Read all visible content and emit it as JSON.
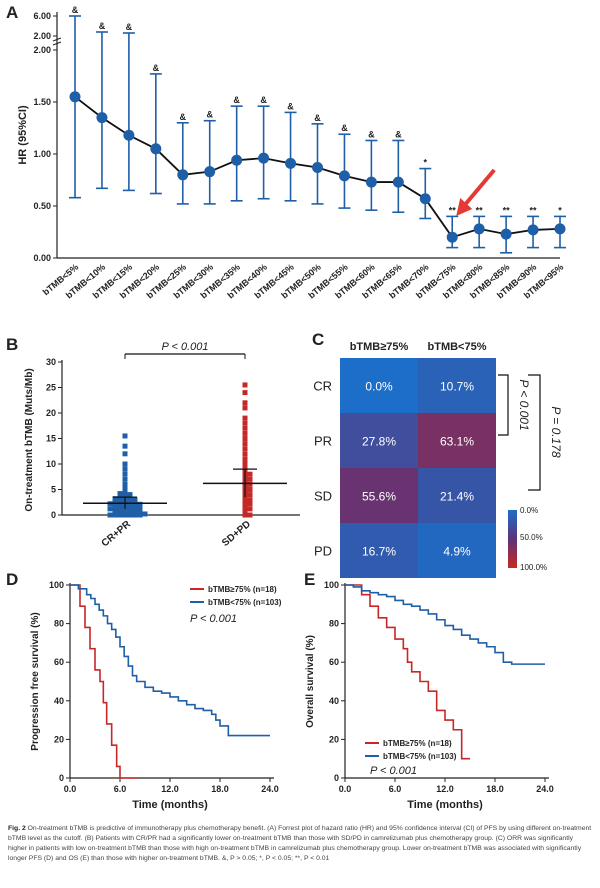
{
  "chart_data": [
    {
      "panel": "A",
      "type": "forest",
      "ylabel": "HR (95%CI)",
      "ylim": [
        0,
        6.0
      ],
      "yticks": [
        "0.00",
        "0.50",
        "1.00",
        "1.50",
        "2.00",
        "2.00",
        "6.00"
      ],
      "categories": [
        "bTMB<5%",
        "bTMB<10%",
        "bTMB<15%",
        "bTMB<20%",
        "bTMB<25%",
        "bTMB<30%",
        "bTMB<35%",
        "bTMB<40%",
        "bTMB<45%",
        "bTMB<50%",
        "bTMB<55%",
        "bTMB<60%",
        "bTMB<65%",
        "bTMB<70%",
        "bTMB<75%",
        "bTMB<80%",
        "bTMB<85%",
        "bTMB<90%",
        "bTMB<95%"
      ],
      "hr": [
        1.55,
        1.35,
        1.18,
        1.05,
        0.8,
        0.83,
        0.94,
        0.96,
        0.91,
        0.87,
        0.79,
        0.73,
        0.73,
        0.57,
        0.2,
        0.28,
        0.23,
        0.27,
        0.28
      ],
      "lower": [
        0.58,
        0.67,
        0.65,
        0.62,
        0.52,
        0.52,
        0.55,
        0.57,
        0.55,
        0.52,
        0.48,
        0.46,
        0.44,
        0.38,
        0.1,
        0.1,
        0.05,
        0.1,
        0.1
      ],
      "upper": [
        6.0,
        2.8,
        2.6,
        1.77,
        1.3,
        1.32,
        1.46,
        1.46,
        1.4,
        1.29,
        1.19,
        1.13,
        1.13,
        0.86,
        0.4,
        0.4,
        0.4,
        0.4,
        0.4
      ],
      "annotations": [
        "&",
        "&",
        "&",
        "&",
        "&",
        "&",
        "&",
        "&",
        "&",
        "&",
        "&",
        "&",
        "&",
        "*",
        "**",
        "**",
        "**",
        "**",
        "*"
      ]
    },
    {
      "panel": "B",
      "type": "scatter",
      "ylabel": "On-treatment bTMB (Muts/Mb)",
      "ylim": [
        0,
        30
      ],
      "yticks": [
        "0",
        "5",
        "10",
        "15",
        "20",
        "25",
        "30"
      ],
      "categories": [
        "CR+PR",
        "SD+PD"
      ],
      "means": [
        2.3,
        6.2
      ],
      "sd": [
        [
          1.2,
          3.5
        ],
        [
          3.5,
          9.0
        ]
      ],
      "points": [
        [
          0,
          0,
          0,
          0,
          0,
          0,
          0,
          0.2,
          0.3,
          0.4,
          0.5,
          0.5,
          0.6,
          0.7,
          0.8,
          0.9,
          1,
          1,
          1,
          1.1,
          1.2,
          1.3,
          1.4,
          1.5,
          1.5,
          1.6,
          1.7,
          1.8,
          1.9,
          2,
          2,
          2,
          2.1,
          2.2,
          2.3,
          2.4,
          2.5,
          2.5,
          2.6,
          2.8,
          3,
          3,
          3,
          3.2,
          3.4,
          3.5,
          3.6,
          3.8,
          4,
          4.2,
          4.5,
          5,
          5.5,
          6,
          7,
          8,
          9,
          10,
          12,
          13.5,
          15.5
        ],
        [
          0,
          0,
          0.5,
          1,
          1.2,
          1.5,
          2,
          2.2,
          2.5,
          3,
          3,
          3.5,
          4,
          4,
          4.5,
          5,
          5,
          5.5,
          6,
          6,
          6.5,
          7,
          7,
          7.5,
          8,
          8,
          8.5,
          9,
          9.5,
          10,
          10.5,
          11,
          12,
          13,
          14,
          15,
          16,
          17,
          18,
          19,
          21,
          22,
          24,
          25.5
        ]
      ],
      "annotation": "P < 0.001"
    },
    {
      "panel": "C",
      "type": "heatmap",
      "columns": [
        "bTMB≥75%",
        "bTMB<75%"
      ],
      "rows": [
        "CR",
        "PR",
        "SD",
        "PD"
      ],
      "values": [
        [
          0.0,
          10.7
        ],
        [
          27.8,
          63.1
        ],
        [
          55.6,
          21.4
        ],
        [
          16.7,
          4.9
        ]
      ],
      "cells": [
        [
          "0.0%",
          "10.7%"
        ],
        [
          "27.8%",
          "63.1%"
        ],
        [
          "55.6%",
          "21.4%"
        ],
        [
          "16.7%",
          "4.9%"
        ]
      ],
      "colorbar": [
        "0.0%",
        "50.0%",
        "100.0%"
      ],
      "pvalues": [
        "P < 0.001",
        "P = 0.178"
      ]
    },
    {
      "panel": "D",
      "type": "line",
      "ylabel": "Progression free survival (%)",
      "xlabel": "Time (months)",
      "xlim": [
        0,
        24
      ],
      "ylim": [
        0,
        100
      ],
      "xticks": [
        "0.0",
        "6.0",
        "12.0",
        "18.0",
        "24.0"
      ],
      "yticks": [
        "0",
        "20",
        "40",
        "60",
        "80",
        "100"
      ],
      "series": [
        {
          "name": "bTMB≥75% (n=18)",
          "color": "#c62828",
          "x": [
            0,
            1.2,
            1.2,
            1.8,
            1.8,
            2.4,
            2.4,
            3.0,
            3.0,
            3.6,
            3.6,
            4.0,
            4.0,
            4.4,
            4.4,
            5.0,
            5.0,
            5.6,
            5.6,
            6.0,
            6.0,
            8.2
          ],
          "y": [
            100,
            100,
            89,
            89,
            78,
            78,
            67,
            67,
            56,
            56,
            50,
            50,
            39,
            39,
            28,
            28,
            17,
            17,
            6,
            6,
            0,
            0
          ]
        },
        {
          "name": "bTMB<75% (n=103)",
          "color": "#1f5fa8",
          "x": [
            0,
            1,
            2,
            2.5,
            3,
            3.5,
            4,
            4.5,
            5,
            5.5,
            6,
            6.5,
            7,
            7.5,
            8,
            9,
            10,
            11,
            12,
            13,
            14,
            15,
            16,
            17,
            17.5,
            18,
            19,
            20,
            24
          ],
          "y": [
            100,
            98,
            95,
            93,
            90,
            87,
            84,
            80,
            77,
            73,
            68,
            63,
            58,
            53,
            50,
            47,
            45,
            44,
            42,
            40,
            38,
            36,
            35,
            33,
            30,
            27,
            22,
            22,
            22
          ]
        }
      ],
      "annotation": "P < 0.001"
    },
    {
      "panel": "E",
      "type": "line",
      "ylabel": "Overall survival (%)",
      "xlabel": "Time (months)",
      "xlim": [
        0,
        24
      ],
      "ylim": [
        0,
        100
      ],
      "xticks": [
        "0.0",
        "6.0",
        "12.0",
        "18.0",
        "24.0"
      ],
      "yticks": [
        "0",
        "20",
        "40",
        "60",
        "80",
        "100"
      ],
      "series": [
        {
          "name": "bTMB≥75% (n=18)",
          "color": "#c62828",
          "x": [
            0,
            1.5,
            2,
            3,
            4,
            5,
            6,
            7,
            7.5,
            8,
            9,
            10,
            11,
            12,
            13,
            14,
            15
          ],
          "y": [
            100,
            100,
            95,
            89,
            83,
            78,
            72,
            67,
            60,
            55,
            50,
            45,
            35,
            30,
            25,
            10,
            10
          ]
        },
        {
          "name": "bTMB<75% (n=103)",
          "color": "#1f5fa8",
          "x": [
            0,
            1,
            2,
            3,
            4,
            5,
            6,
            7,
            8,
            9,
            10,
            11,
            12,
            13,
            14,
            15,
            16,
            17,
            18,
            19,
            20,
            22,
            24
          ],
          "y": [
            100,
            99,
            97,
            96,
            95,
            94,
            92,
            90,
            89,
            87,
            85,
            82,
            79,
            77,
            74,
            72,
            70,
            68,
            65,
            60,
            59,
            59,
            59
          ]
        }
      ],
      "annotation": "P < 0.001"
    }
  ],
  "panel_letters": [
    "A",
    "B",
    "C",
    "D",
    "E"
  ],
  "caption": {
    "label": "Fig. 2",
    "text": "On-treatment bTMB is predictive of immunotherapy plus chemotherapy benefit. (A) Forrest plot of hazard ratio (HR) and 95% confidence interval (CI) of PFS by using different on-treatment bTMB level as the cutoff. (B) Patients with CR/PR had a significantly lower on-treatment bTMB than those with SD/PD in camrelizumab plus chemotherapy group. (C) ORR was significantly higher in patients with low on-treatment bTMB than those with high on-treatment bTMB in camrelizumab plus chemotherapy group. Lower on-treatment bTMB was associated with significantly longer PFS (D) and OS (E) than those with higher on-treatment bTMB. &, P > 0.05; *, P < 0.05; **, P < 0.01"
  },
  "colors": {
    "blue": "#1f5fa8",
    "red": "#c62828",
    "arrow": "#e53935"
  }
}
